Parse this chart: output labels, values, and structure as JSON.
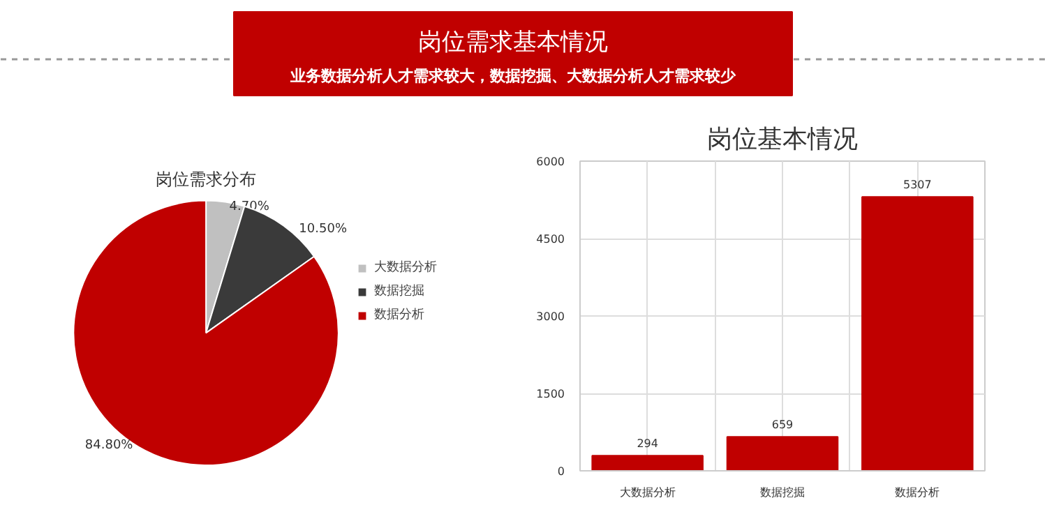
{
  "chart_data": [
    {
      "type": "other",
      "title": "岗位需求基本情况",
      "subtitle": "业务数据分析人才需求较大，数据挖掘、大数据分析人才需求较少"
    },
    {
      "type": "pie",
      "title": "岗位需求分布",
      "categories": [
        "大数据分析",
        "数据挖掘",
        "数据分析"
      ],
      "values": [
        4.7,
        10.5,
        84.8
      ],
      "value_labels": [
        "4.70%",
        "10.50%",
        "84.80%"
      ],
      "colors": [
        "#c0c0c0",
        "#3a3a3a",
        "#c00000"
      ],
      "legend": "right"
    },
    {
      "type": "bar",
      "title": "岗位基本情况",
      "categories": [
        "大数据分析",
        "数据挖掘",
        "数据分析"
      ],
      "values": [
        294,
        659,
        5307
      ],
      "color": "#c00000",
      "ylim": [
        0,
        6000
      ],
      "yticks": [
        0,
        1500,
        3000,
        4500,
        6000
      ],
      "grid": true,
      "data_labels": true
    }
  ]
}
